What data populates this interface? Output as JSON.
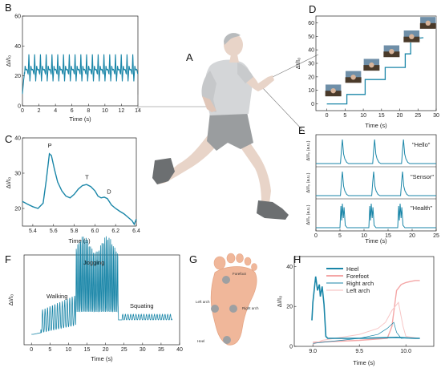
{
  "panel_letters": {
    "A": "A",
    "B": "B",
    "C": "C",
    "D": "D",
    "E": "E",
    "F": "F",
    "G": "G",
    "H": "H"
  },
  "colors": {
    "teal": "#1a86a8",
    "skin": "#e8d4c8",
    "shirt": "#d4d6d8",
    "shorts": "#9a9d9f",
    "shoes": "#6c6f71",
    "foot": "#f0b79a",
    "pink": "#f4a6a6",
    "light_pink": "#f7c6c6"
  },
  "foot_labels": {
    "forefoot": "Forefoot",
    "left_arch": "Left arch",
    "right_arch": "Right arch",
    "heel": "Heel"
  },
  "chart_data": [
    {
      "id": "B",
      "type": "line",
      "xlabel": "Time (s)",
      "ylabel": "ΔI/I₀",
      "xlim": [
        0,
        14
      ],
      "ylim": [
        0,
        60
      ],
      "xticks": [
        "0",
        "2",
        "4",
        "6",
        "8",
        "10",
        "12",
        "14"
      ],
      "yticks": [
        "0",
        "20",
        "40",
        "60"
      ],
      "peak_period_s": 0.7,
      "peak_value": 35,
      "baseline": 22,
      "dip_value": 14,
      "series": [
        {
          "values_desc": "periodic pulse waveform"
        }
      ]
    },
    {
      "id": "C",
      "type": "line",
      "xlabel": "Time (s)",
      "ylabel": "ΔI/I₀",
      "xlim": [
        5.3,
        6.4
      ],
      "ylim": [
        15,
        40
      ],
      "xticks": [
        "5.4",
        "5.6",
        "5.8",
        "6.0",
        "6.2",
        "6.4"
      ],
      "yticks": [
        "20",
        "30",
        "40"
      ],
      "annotations": [
        "P",
        "T",
        "D"
      ],
      "x": [
        5.3,
        5.35,
        5.4,
        5.45,
        5.5,
        5.53,
        5.56,
        5.58,
        5.61,
        5.64,
        5.68,
        5.72,
        5.76,
        5.8,
        5.84,
        5.88,
        5.92,
        5.96,
        6.0,
        6.03,
        6.06,
        6.09,
        6.12,
        6.16,
        6.2,
        6.24,
        6.28,
        6.32,
        6.36,
        6.38,
        6.4
      ],
      "y": [
        22.0,
        21.2,
        20.5,
        20.0,
        21.5,
        28.0,
        35.5,
        35.0,
        31.0,
        27.5,
        25.0,
        23.5,
        23.0,
        24.0,
        25.5,
        26.5,
        26.8,
        26.2,
        25.0,
        23.5,
        23.0,
        23.2,
        22.8,
        21.0,
        20.0,
        19.2,
        18.5,
        17.5,
        16.5,
        15.5,
        17.0
      ]
    },
    {
      "id": "D",
      "type": "line",
      "xlabel": "Time (s)",
      "ylabel": "ΔI/I₀",
      "xlim": [
        -3,
        30
      ],
      "ylim": [
        -5,
        65
      ],
      "xticks": [
        "0",
        "5",
        "10",
        "15",
        "20",
        "25",
        "30"
      ],
      "yticks": [
        "0",
        "10",
        "20",
        "30",
        "40",
        "50",
        "60"
      ],
      "x": [
        0,
        5.5,
        5.5,
        10.5,
        10.5,
        16,
        16,
        21.5,
        21.5,
        23,
        23,
        26.5
      ],
      "y": [
        0,
        0,
        7,
        7,
        18,
        18,
        27,
        27,
        37,
        37,
        48,
        49
      ]
    },
    {
      "id": "E",
      "type": "line",
      "xlabel": "Time (s)",
      "ylabel": "ΔI/I₀ (a.u.)",
      "xlim": [
        0,
        25
      ],
      "xticks": [
        "0",
        "5",
        "10",
        "15",
        "20",
        "25"
      ],
      "series": [
        {
          "name": "\"Hello\"",
          "peaks": [
            5.5,
            12.2,
            18.2
          ]
        },
        {
          "name": "\"Sensor\"",
          "peaks": [
            5.5,
            12.0,
            18.0
          ]
        },
        {
          "name": "\"Health\"",
          "peaks": [
            5.5,
            11.5,
            17.5
          ]
        }
      ]
    },
    {
      "id": "F",
      "type": "line",
      "xlabel": "Time (s)",
      "ylabel": "ΔI/I₀",
      "xlim": [
        -2,
        40
      ],
      "xticks": [
        "0",
        "5",
        "10",
        "15",
        "20",
        "25",
        "30",
        "35",
        "40"
      ],
      "annotations": [
        "Walking",
        "Jogging",
        "Squating"
      ],
      "segments": [
        {
          "label": "Walking",
          "t": [
            2.5,
            12
          ],
          "amplitude": 0.35
        },
        {
          "label": "Jogging",
          "t": [
            12,
            23.5
          ],
          "amplitude": 0.95
        },
        {
          "label": "Squating",
          "t": [
            24.5,
            38
          ],
          "amplitude": 0.07
        }
      ]
    },
    {
      "id": "H",
      "type": "line",
      "xlabel": "Time (s)",
      "ylabel": "ΔI/I₀",
      "xlim": [
        8.8,
        10.3
      ],
      "ylim": [
        0,
        45
      ],
      "xticks": [
        "9.0",
        "9.5",
        "10.0"
      ],
      "yticks": [
        "0",
        "20",
        "40"
      ],
      "legend_position": "top-left",
      "series": [
        {
          "name": "Heel",
          "color": "#1a86a8"
        },
        {
          "name": "Forefoot",
          "color": "#f4a6a6"
        },
        {
          "name": "Right arch",
          "color": "#1a86a8"
        },
        {
          "name": "Left arch",
          "color": "#f7c6c6"
        }
      ]
    }
  ]
}
